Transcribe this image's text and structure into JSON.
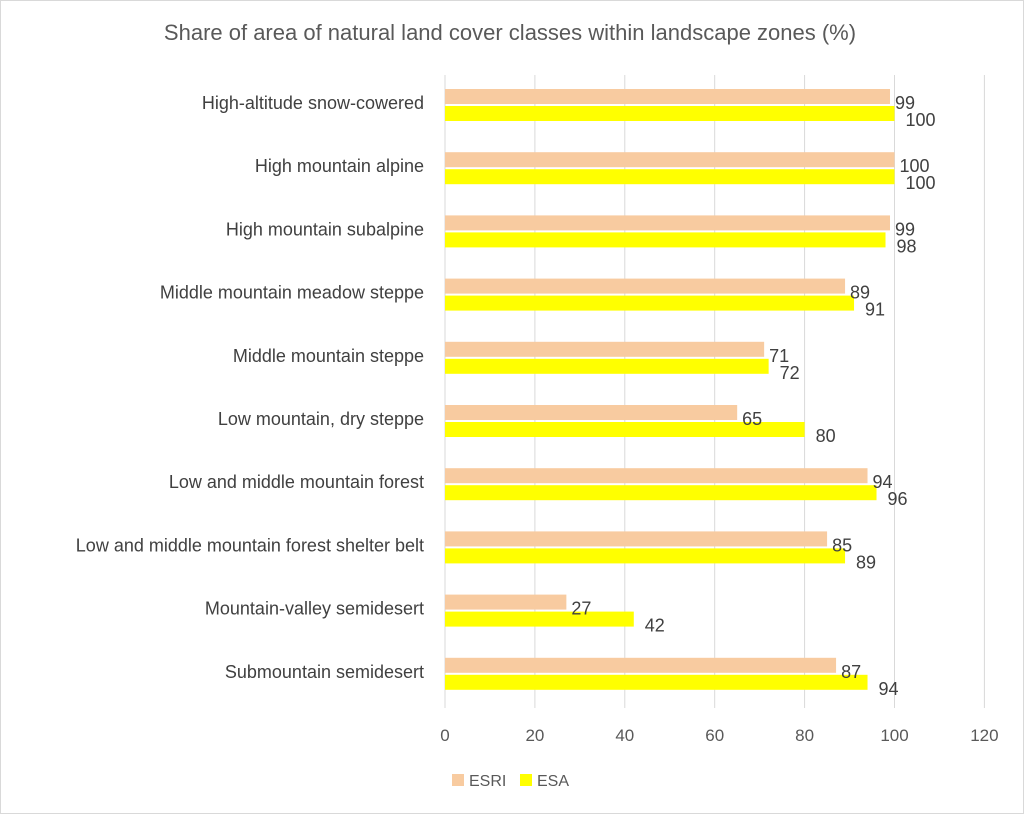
{
  "chart_data": {
    "type": "bar",
    "orientation": "horizontal",
    "title": "Share of area of natural land cover classes within landscape zones (%)",
    "categories": [
      "High-altitude snow-cowered",
      "High mountain alpine",
      "High mountain subalpine",
      "Middle mountain meadow steppe",
      "Middle mountain steppe",
      "Low mountain, dry steppe",
      "Low and middle mountain forest",
      "Low and middle mountain forest shelter belt",
      "Mountain-valley semidesert",
      "Submountain semidesert"
    ],
    "series": [
      {
        "name": "ESRI",
        "color": "#f8cba0",
        "values": [
          99,
          100,
          99,
          89,
          71,
          65,
          94,
          85,
          27,
          87
        ]
      },
      {
        "name": "ESA",
        "color": "#ffff00",
        "values": [
          100,
          100,
          98,
          91,
          72,
          80,
          96,
          89,
          42,
          94
        ]
      }
    ],
    "xlim": [
      0,
      120
    ],
    "xticks": [
      "0",
      "20",
      "40",
      "60",
      "80",
      "100",
      "120"
    ],
    "grid": true,
    "legend": "bottom",
    "xlabel": "",
    "ylabel": ""
  }
}
